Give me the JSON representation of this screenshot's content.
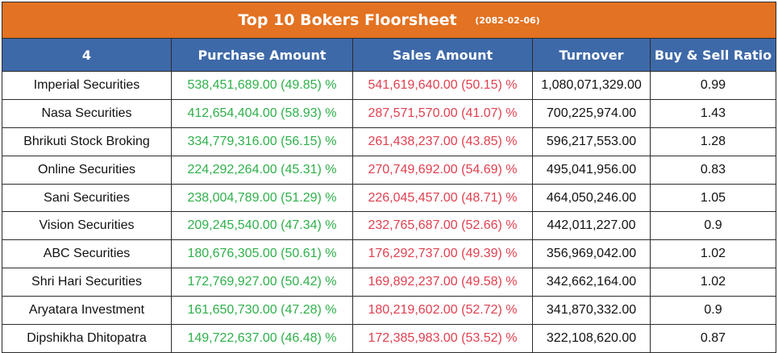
{
  "title": "Top 10 Bokers Floorsheet",
  "date": "(2082-02-06)",
  "headers": [
    "4",
    "Purchase Amount",
    "Sales Amount",
    "Turnover",
    "Buy & Sell Ratio"
  ],
  "rows": [
    {
      "broker": "Imperial Securities",
      "purchase": "538,451,689.00 (49.85) %",
      "sales": "541,619,640.00 (50.15) %",
      "turnover": "1,080,071,329.00",
      "ratio": "0.99"
    },
    {
      "broker": "Nasa Securities",
      "purchase": "412,654,404.00 (58.93) %",
      "sales": "287,571,570.00 (41.07) %",
      "turnover": "700,225,974.00",
      "ratio": "1.43"
    },
    {
      "broker": "Bhrikuti Stock Broking",
      "purchase": "334,779,316.00 (56.15) %",
      "sales": "261,438,237.00 (43.85) %",
      "turnover": "596,217,553.00",
      "ratio": "1.28"
    },
    {
      "broker": "Online Securities",
      "purchase": "224,292,264.00 (45.31) %",
      "sales": "270,749,692.00 (54.69) %",
      "turnover": "495,041,956.00",
      "ratio": "0.83"
    },
    {
      "broker": "Sani Securities",
      "purchase": "238,004,789.00 (51.29) %",
      "sales": "226,045,457.00 (48.71) %",
      "turnover": "464,050,246.00",
      "ratio": "1.05"
    },
    {
      "broker": "Vision Securities",
      "purchase": "209,245,540.00 (47.34) %",
      "sales": "232,765,687.00 (52.66) %",
      "turnover": "442,011,227.00",
      "ratio": "0.9"
    },
    {
      "broker": "ABC Securities",
      "purchase": "180,676,305.00 (50.61) %",
      "sales": "176,292,737.00 (49.39) %",
      "turnover": "356,969,042.00",
      "ratio": "1.02"
    },
    {
      "broker": "Shri Hari Securities",
      "purchase": "172,769,927.00 (50.42) %",
      "sales": "169,892,237.00 (49.58) %",
      "turnover": "342,662,164.00",
      "ratio": "1.02"
    },
    {
      "broker": "Aryatara Investment",
      "purchase": "161,650,730.00 (47.28) %",
      "sales": "180,219,602.00 (52.72) %",
      "turnover": "341,870,332.00",
      "ratio": "0.9"
    },
    {
      "broker": "Dipshikha Dhitopatra",
      "purchase": "149,722,637.00 (46.48) %",
      "sales": "172,385,983.00 (53.52) %",
      "turnover": "322,108,620.00",
      "ratio": "0.87"
    }
  ],
  "colors": {
    "title_bg": "#e37222",
    "header_bg": "#3e69a8",
    "purchase_text": "#2fb04a",
    "sales_text": "#e0404f"
  }
}
